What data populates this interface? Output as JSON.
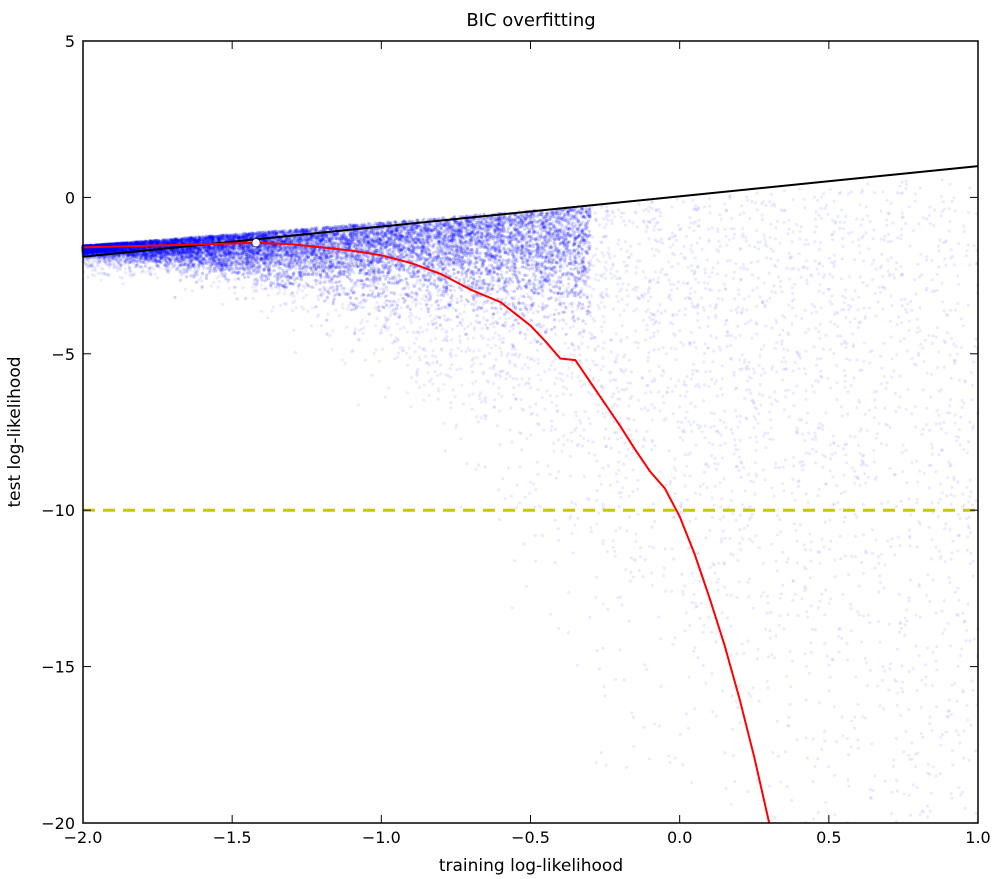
{
  "chart_data": {
    "type": "scatter",
    "title": "BIC overfitting",
    "xlabel": "training log-likelihood",
    "ylabel": "test log-likelihood",
    "xlim": [
      -2.0,
      1.0
    ],
    "ylim": [
      -20,
      5
    ],
    "xticks": [
      -2.0,
      -1.5,
      -1.0,
      -0.5,
      0.0,
      0.5,
      1.0
    ],
    "xtick_labels": [
      "−2.0",
      "−1.5",
      "−1.0",
      "−0.5",
      "0.0",
      "0.5",
      "1.0"
    ],
    "yticks": [
      -20,
      -15,
      -10,
      -5,
      0,
      5
    ],
    "ytick_labels": [
      "−20",
      "−15",
      "−10",
      "−5",
      "0",
      "5"
    ],
    "grid": false,
    "series": [
      {
        "kind": "scatter",
        "color": "#0000ff",
        "description_hint": "dense cloud of translucent blue points; densest just below the diagonal near x=-2 to -0.5 and fanning downward toward larger x"
      },
      {
        "kind": "line",
        "color": "#000000",
        "x": [
          -2.0,
          1.0
        ],
        "y": [
          -1.9,
          1.0
        ]
      },
      {
        "kind": "line",
        "color": "#ff0000",
        "x": [
          -2.0,
          -1.8,
          -1.6,
          -1.42,
          -1.3,
          -1.2,
          -1.1,
          -1.0,
          -0.9,
          -0.8,
          -0.7,
          -0.6,
          -0.5,
          -0.45,
          -0.4,
          -0.35,
          -0.3,
          -0.25,
          -0.2,
          -0.15,
          -0.1,
          -0.05,
          0.0,
          0.05,
          0.1,
          0.15,
          0.2,
          0.25,
          0.3
        ],
        "y": [
          -1.6,
          -1.55,
          -1.5,
          -1.45,
          -1.5,
          -1.6,
          -1.7,
          -1.85,
          -2.1,
          -2.45,
          -2.95,
          -3.35,
          -4.1,
          -4.6,
          -5.15,
          -5.2,
          -5.9,
          -6.6,
          -7.3,
          -8.05,
          -8.75,
          -9.3,
          -10.2,
          -11.4,
          -12.8,
          -14.3,
          -16.0,
          -17.9,
          -20.0
        ]
      },
      {
        "kind": "hline",
        "color": "#c8c800",
        "y": -10,
        "style": "dashed"
      },
      {
        "kind": "marker",
        "color": "#ffffff",
        "x": -1.42,
        "y": -1.45
      }
    ]
  }
}
